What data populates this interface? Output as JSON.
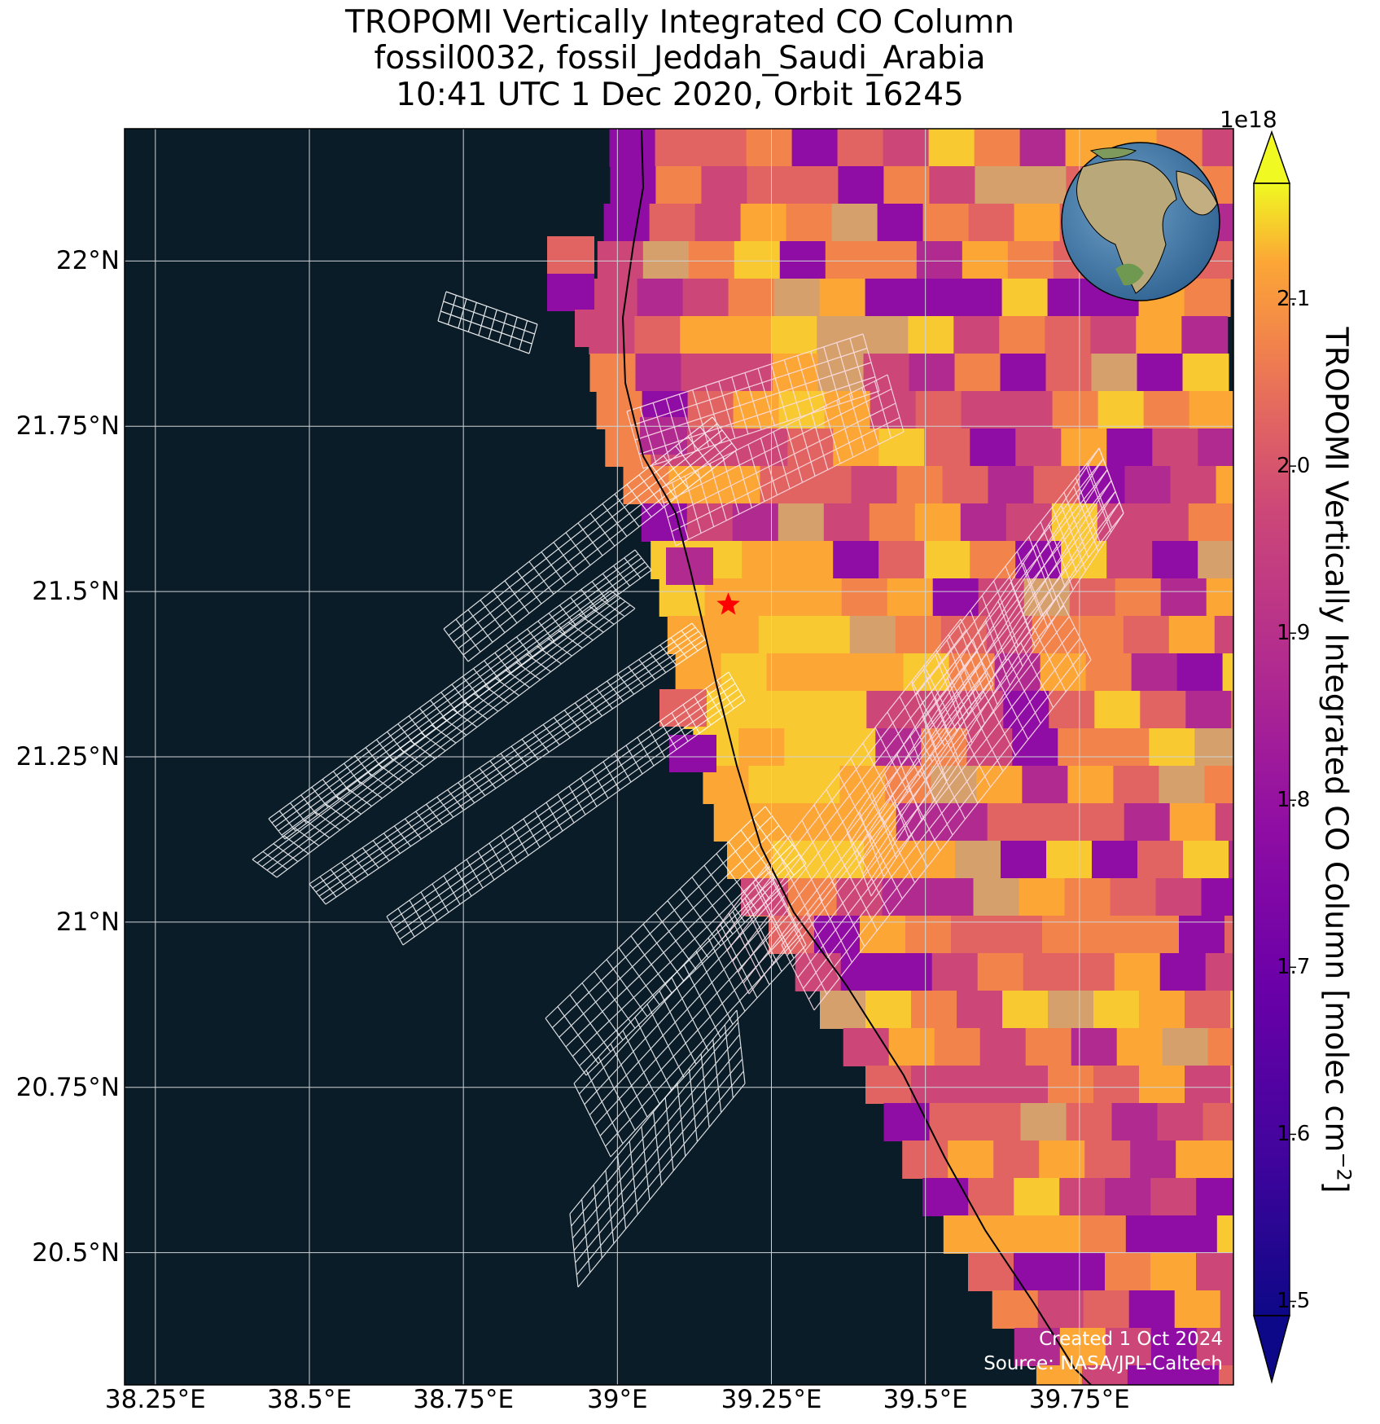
{
  "title": {
    "line1": "TROPOMI Vertically Integrated CO Column",
    "line2": "fossil0032, fossil_Jeddah_Saudi_Arabia",
    "line3": "10:41 UTC 1 Dec 2020, Orbit 16245"
  },
  "map": {
    "lon_ticks": [
      "38.25°E",
      "38.5°E",
      "38.75°E",
      "39°E",
      "39.25°E",
      "39.5°E",
      "39.75°E"
    ],
    "lat_ticks": [
      "22°N",
      "21.75°N",
      "21.5°N",
      "21.25°N",
      "21°N",
      "20.75°N",
      "20.5°N"
    ],
    "lon_values": [
      38.25,
      38.5,
      38.75,
      39.0,
      39.25,
      39.5,
      39.75
    ],
    "lat_values": [
      22.0,
      21.75,
      21.5,
      21.25,
      21.0,
      20.75,
      20.5
    ],
    "extent": {
      "lon_min": 38.2,
      "lon_max": 40.0,
      "lat_min": 20.3,
      "lat_max": 22.2
    },
    "site_marker": {
      "lon": 39.18,
      "lat": 21.48,
      "color": "#ff0000"
    },
    "ocean_color": "#0b1c29",
    "grid_color": "#cfd3d6"
  },
  "colorbar": {
    "label": "TROPOMI Vertically Integrated CO Column [molec cm",
    "label_exponent": "−2",
    "label_close": "]",
    "exponent": "1e18",
    "ticks": [
      "1.5",
      "1.6",
      "1.7",
      "1.8",
      "1.9",
      "2.0",
      "2.1"
    ],
    "tick_values": [
      1.5,
      1.6,
      1.7,
      1.8,
      1.9,
      2.0,
      2.1
    ],
    "vmin": 1.45,
    "vmax": 2.2,
    "colormap": "plasma"
  },
  "credits": {
    "line1": "Created 1 Oct 2024",
    "line2": "Source: NASA/JPL-Caltech"
  }
}
